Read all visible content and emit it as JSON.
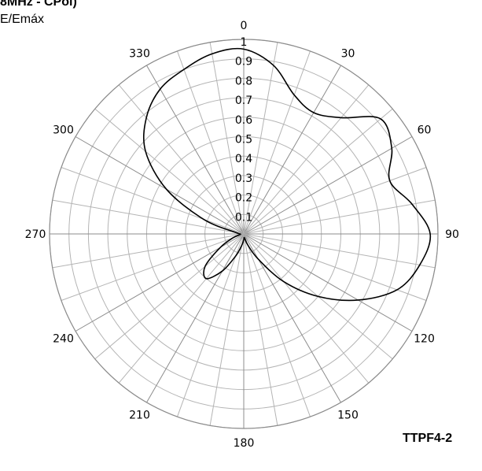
{
  "header": {
    "title": "8MHz - CPol)",
    "subtitle": "E/Emáx"
  },
  "figure_tag": "TTPF4-2",
  "chart_data": {
    "type": "polar-line",
    "title": "8MHz - CPol)",
    "r_label": "E/Emáx",
    "r_range": [
      0,
      1
    ],
    "r_ticks": [
      0.1,
      0.2,
      0.3,
      0.4,
      0.5,
      0.6,
      0.7,
      0.8,
      0.9,
      1
    ],
    "r_tick_labels": [
      "0.1",
      "0.2",
      "0.3",
      "0.4",
      "0.5",
      "0.6",
      "0.7",
      "0.8",
      "0.9",
      "1"
    ],
    "angle_direction": "clockwise from top",
    "angle_ticks": [
      0,
      30,
      60,
      90,
      120,
      150,
      180,
      210,
      240,
      270,
      300,
      330
    ],
    "angle_tick_labels": [
      "0",
      "30",
      "60",
      "90",
      "120",
      "150",
      "180",
      "210",
      "240",
      "270",
      "300",
      "330"
    ],
    "grid": true,
    "grid_angle_step_deg": 10,
    "line_color": "#000000",
    "grid_color": "#b4b4b4",
    "series": [
      {
        "theta_deg": [
          0,
          10,
          20,
          30,
          40,
          50,
          60,
          70,
          80,
          90,
          100,
          110,
          120,
          130,
          140,
          150,
          160,
          170,
          180,
          190,
          200,
          210,
          220,
          230,
          240,
          250,
          260,
          270,
          280,
          290,
          300,
          310,
          320,
          330,
          340,
          350,
          360
        ],
        "r": [
          0.95,
          0.88,
          0.76,
          0.72,
          0.78,
          0.92,
          0.88,
          0.8,
          0.88,
          0.96,
          0.92,
          0.84,
          0.68,
          0.5,
          0.32,
          0.15,
          0.06,
          0.02,
          0.03,
          0.06,
          0.12,
          0.22,
          0.3,
          0.26,
          0.14,
          0.06,
          0.02,
          0.02,
          0.04,
          0.22,
          0.46,
          0.66,
          0.78,
          0.86,
          0.9,
          0.94,
          0.95
        ]
      }
    ]
  }
}
